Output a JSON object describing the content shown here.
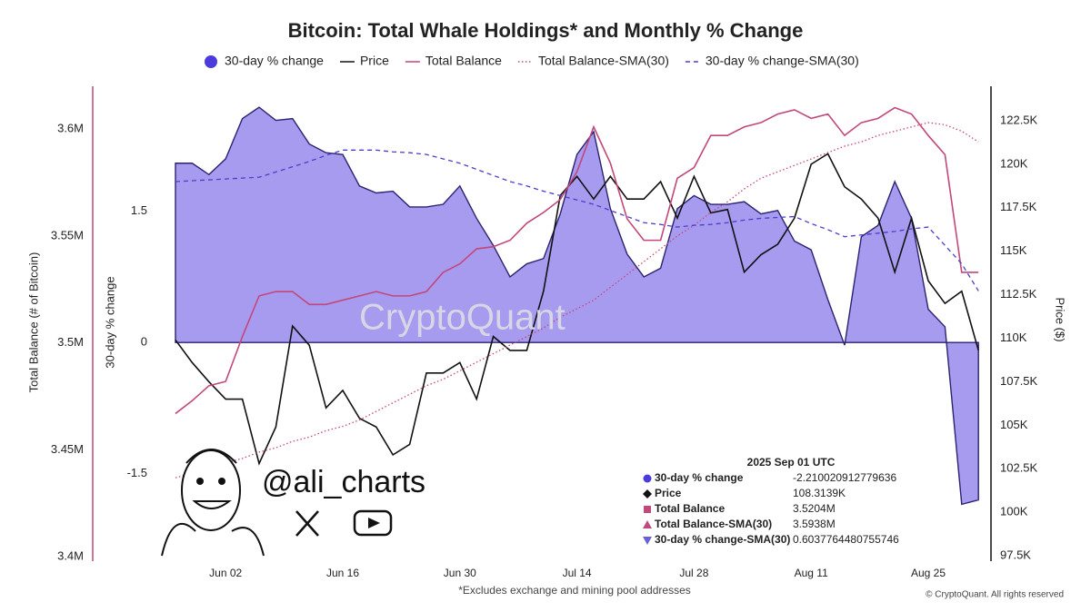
{
  "chart_data": {
    "type": "combo",
    "title": "Bitcoin: Total Whale Holdings* and Monthly % Change",
    "categories": [
      null,
      null,
      null,
      "Jun 02",
      null,
      null,
      null,
      null,
      null,
      null,
      "Jun 16",
      null,
      null,
      null,
      null,
      null,
      null,
      "Jun 30",
      null,
      null,
      null,
      null,
      null,
      null,
      "Jul 14",
      null,
      null,
      null,
      null,
      null,
      null,
      "Jul 28",
      null,
      null,
      null,
      null,
      null,
      null,
      "Aug 11",
      null,
      null,
      null,
      null,
      null,
      null,
      "Aug 25",
      null,
      null,
      null
    ],
    "series": [
      {
        "name": "30-day % change",
        "kind": "area",
        "axis": "y2",
        "color": "#a296ef",
        "values": [
          2.05,
          2.05,
          1.92,
          2.1,
          2.56,
          2.69,
          2.54,
          2.56,
          2.27,
          2.17,
          2.15,
          1.79,
          1.71,
          1.73,
          1.55,
          1.55,
          1.58,
          1.79,
          1.42,
          1.11,
          0.75,
          0.9,
          0.96,
          1.47,
          2.15,
          2.41,
          1.53,
          1.01,
          0.75,
          0.85,
          1.53,
          1.68,
          1.58,
          1.58,
          1.61,
          1.47,
          1.51,
          1.16,
          1.06,
          0.49,
          -0.03,
          1.21,
          1.34,
          1.84,
          1.42,
          0.38,
          0.18,
          -1.85,
          -1.8
        ]
      },
      {
        "name": "Price",
        "kind": "line",
        "axis": "y3",
        "color": "#111111",
        "values": [
          109900,
          108600,
          107500,
          106500,
          106500,
          102800,
          104900,
          110700,
          109600,
          106000,
          107000,
          105400,
          104900,
          103300,
          103900,
          108000,
          108000,
          108600,
          106500,
          110100,
          109300,
          109300,
          112700,
          118200,
          119300,
          118000,
          119300,
          118000,
          118000,
          119000,
          116900,
          119300,
          117200,
          117400,
          113800,
          114800,
          115400,
          116900,
          120000,
          120600,
          118700,
          118000,
          116900,
          113800,
          116900,
          113300,
          112000,
          112700,
          109300
        ]
      },
      {
        "name": "Total Balance",
        "kind": "line",
        "axis": "y",
        "color": "#c2477a",
        "values": [
          3467000,
          3473000,
          3480000,
          3482000,
          3503000,
          3522000,
          3524000,
          3524000,
          3518000,
          3518000,
          3520000,
          3522000,
          3524000,
          3522000,
          3522000,
          3524000,
          3533000,
          3537000,
          3544000,
          3545000,
          3548000,
          3556000,
          3561000,
          3567000,
          3580000,
          3601000,
          3584000,
          3558000,
          3548000,
          3548000,
          3577000,
          3582000,
          3597000,
          3597000,
          3601000,
          3603000,
          3607000,
          3609000,
          3605000,
          3607000,
          3597000,
          3603000,
          3605000,
          3610000,
          3607000,
          3597000,
          3588000,
          3533000,
          3533000
        ]
      },
      {
        "name": "Total Balance-SMA(30)",
        "kind": "line",
        "dash": "1.5 2.5",
        "axis": "y",
        "color": "#c2477a",
        "values": [
          3437000,
          3439000,
          3441000,
          3444000,
          3446000,
          3449000,
          3451000,
          3454000,
          3456000,
          3459000,
          3461000,
          3464000,
          3468000,
          3472000,
          3476000,
          3480000,
          3483000,
          3487000,
          3491000,
          3495000,
          3499000,
          3503000,
          3507000,
          3512000,
          3516000,
          3520000,
          3526000,
          3532000,
          3538000,
          3544000,
          3550000,
          3555000,
          3561000,
          3566000,
          3572000,
          3577000,
          3580000,
          3583000,
          3586000,
          3589000,
          3592000,
          3594000,
          3597000,
          3599000,
          3601000,
          3603000,
          3602000,
          3599000,
          3594000
        ]
      },
      {
        "name": "30-day % change-SMA(30)",
        "kind": "line",
        "dash": "5 4",
        "axis": "y2",
        "color": "#4a3fc8",
        "values": [
          1.84,
          1.85,
          1.86,
          1.87,
          1.88,
          1.89,
          1.95,
          2.01,
          2.07,
          2.14,
          2.2,
          2.2,
          2.2,
          2.18,
          2.17,
          2.15,
          2.1,
          2.05,
          1.98,
          1.91,
          1.84,
          1.79,
          1.73,
          1.68,
          1.63,
          1.58,
          1.51,
          1.44,
          1.37,
          1.35,
          1.32,
          1.34,
          1.35,
          1.37,
          1.4,
          1.42,
          1.43,
          1.44,
          1.36,
          1.29,
          1.21,
          1.23,
          1.25,
          1.27,
          1.3,
          1.32,
          1.11,
          0.9,
          0.59
        ]
      }
    ],
    "ylabel": "Total Balance (# of Bitcoin)",
    "ylim": [
      3398000,
      3620000
    ],
    "yticks": [
      {
        "value": 3400000,
        "label": "3.4M"
      },
      {
        "value": 3450000,
        "label": "3.45M"
      },
      {
        "value": 3500000,
        "label": "3.5M"
      },
      {
        "value": 3550000,
        "label": "3.55M"
      },
      {
        "value": 3600000,
        "label": "3.6M"
      }
    ],
    "y2label": "30-day % change",
    "y2lim": [
      -2.5,
      2.93
    ],
    "y2ticks": [
      -1.5,
      0,
      1.5
    ],
    "y3label": "Price ($)",
    "y3lim": [
      97190,
      124480
    ],
    "y3ticks": [
      {
        "value": 97500,
        "label": "97.5K"
      },
      {
        "value": 100000,
        "label": "100K"
      },
      {
        "value": 102500,
        "label": "102.5K"
      },
      {
        "value": 105000,
        "label": "105K"
      },
      {
        "value": 107500,
        "label": "107.5K"
      },
      {
        "value": 110000,
        "label": "110K"
      },
      {
        "value": 112500,
        "label": "112.5K"
      },
      {
        "value": 115000,
        "label": "115K"
      },
      {
        "value": 117500,
        "label": "117.5K"
      },
      {
        "value": 120000,
        "label": "120K"
      },
      {
        "value": 122500,
        "label": "122.5K"
      }
    ],
    "note": "*Excludes exchange and mining pool addresses",
    "credit": "© CryptoQuant. All rights reserved",
    "watermark": "CryptoQuant",
    "handle": "@ali_charts",
    "tooltip": {
      "title": "2025 Sep 01 UTC",
      "rows": [
        {
          "label": "30-day % change",
          "value": "-2.210020912779636"
        },
        {
          "label": "Price",
          "value": "108.3139K"
        },
        {
          "label": "Total Balance",
          "value": "3.5204M"
        },
        {
          "label": "Total Balance-SMA(30)",
          "value": "3.5938M"
        },
        {
          "label": "30-day % change-SMA(30)",
          "value": "0.6037764480755746"
        }
      ]
    }
  }
}
